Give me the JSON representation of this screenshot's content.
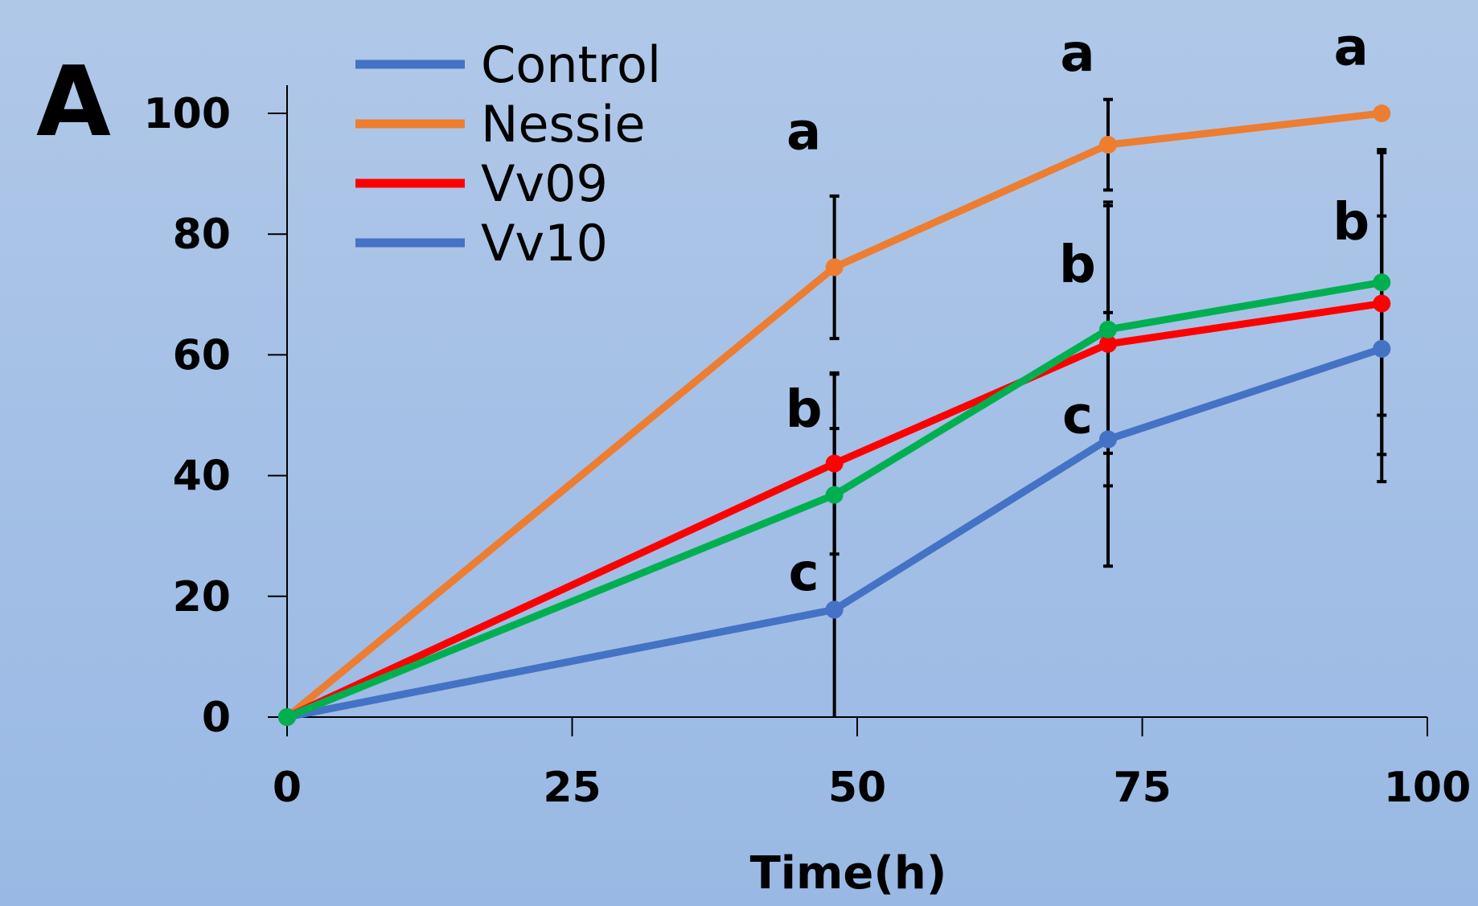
{
  "panel_label": "A",
  "chart_data": {
    "type": "line",
    "title": "",
    "xlabel": "Time(h)",
    "ylabel": "",
    "xlim": [
      0,
      100
    ],
    "ylim": [
      0,
      100
    ],
    "x_ticks": [
      0,
      25,
      50,
      75,
      100
    ],
    "y_ticks": [
      0,
      20,
      40,
      60,
      80,
      100
    ],
    "x_tick_labels": [
      "0",
      "25",
      "50",
      "75",
      "100"
    ],
    "y_tick_labels": [
      "0",
      "20",
      "40",
      "60",
      "80",
      "100"
    ],
    "grid": false,
    "legend_position": "top-left",
    "x": [
      0,
      48,
      72,
      96
    ],
    "series": [
      {
        "name": "Control",
        "color": "#4472c4",
        "values": [
          0,
          17.8,
          46,
          61
        ],
        "error": [
          0,
          0,
          0,
          0
        ],
        "show_in_legend": true
      },
      {
        "name": "Nessie",
        "color": "#ed7d31",
        "values": [
          0,
          74.5,
          94.8,
          100
        ],
        "error": [
          0,
          11.8,
          7.5,
          0
        ],
        "show_in_legend": true
      },
      {
        "name": "Vv09",
        "color": "#ff0000",
        "values": [
          0,
          42,
          61.8,
          68.5
        ],
        "error": [
          0,
          15,
          23.5,
          25
        ],
        "show_in_legend": true
      },
      {
        "name": "Vv10",
        "color": "#4472c4",
        "values": [
          0,
          17.8,
          46,
          61
        ],
        "error": [
          0,
          30,
          21,
          22
        ],
        "show_in_legend": true
      },
      {
        "name": "",
        "color": "#00b050",
        "values": [
          0,
          36.8,
          64.2,
          72
        ],
        "error": [
          0,
          20,
          20.5,
          22
        ],
        "show_in_legend": false
      }
    ],
    "annotations": [
      {
        "text": "a",
        "x": 48,
        "y": 97
      },
      {
        "text": "b",
        "x": 48,
        "y": 51
      },
      {
        "text": "c",
        "x": 48,
        "y": 24
      },
      {
        "text": "a",
        "x": 72,
        "y": 110
      },
      {
        "text": "b",
        "x": 72,
        "y": 75
      },
      {
        "text": "c",
        "x": 72,
        "y": 50
      },
      {
        "text": "a",
        "x": 96,
        "y": 111
      },
      {
        "text": "b",
        "x": 96,
        "y": 82
      }
    ]
  }
}
